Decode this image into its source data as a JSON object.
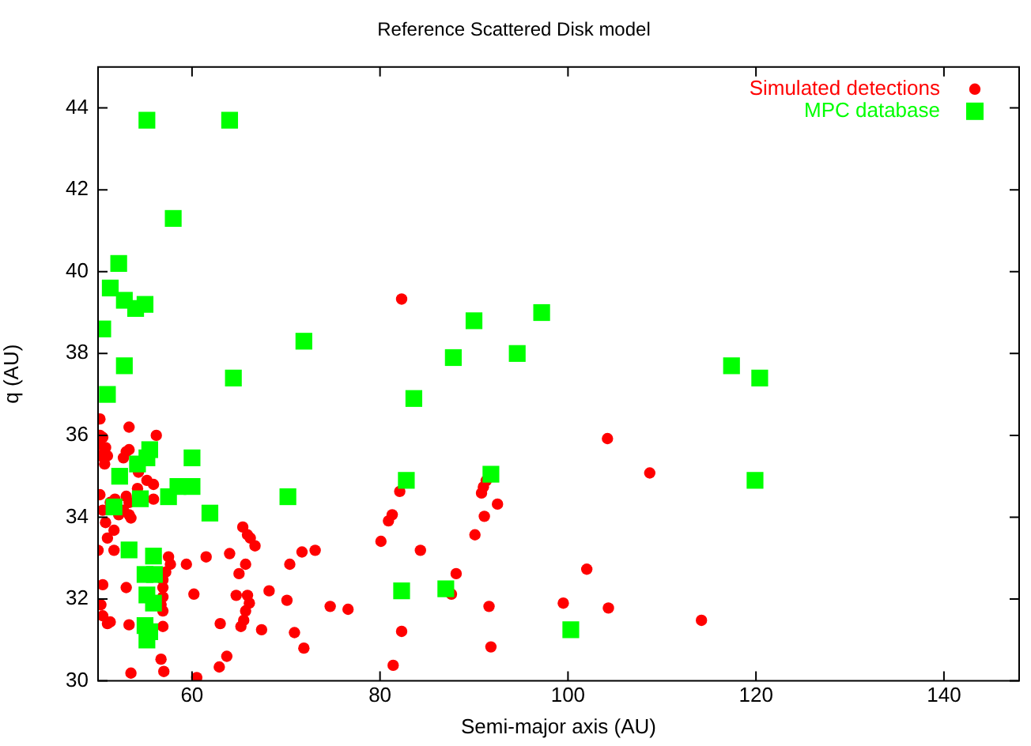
{
  "chart_data": {
    "type": "scatter",
    "title": "Reference Scattered Disk model",
    "xlabel": "Semi-major axis (AU)",
    "ylabel": "q (AU)",
    "xlim": [
      50,
      148
    ],
    "ylim": [
      30,
      45
    ],
    "xticks": [
      60,
      80,
      100,
      120,
      140
    ],
    "yticks": [
      30,
      32,
      34,
      36,
      38,
      40,
      42,
      44
    ],
    "grid": false,
    "legend": "top right",
    "series": [
      {
        "name": "Simulated detections",
        "color": "#ff0000",
        "marker": "circle",
        "x": [
          50.2,
          53.3,
          50.2,
          50.5,
          56.2,
          50.2,
          50.8,
          50.3,
          51,
          50.7,
          53,
          53.3,
          52.7,
          54.3,
          55.2,
          55.9,
          50.2,
          51.3,
          51.8,
          53,
          53.3,
          52.7,
          53.3,
          53.5,
          52.2,
          50.5,
          50.8,
          51,
          51.7,
          55.9,
          54.2,
          50,
          51.7,
          57.5,
          57.7,
          57.2,
          56.9,
          56.9,
          56.9,
          56.7,
          56.9,
          56.9,
          59.4,
          61.5,
          64,
          50.5,
          53,
          60.2,
          50.3,
          50.5,
          51,
          51.3,
          53.3,
          63,
          64.7,
          65.9,
          66.1,
          65.7,
          65.5,
          65.2,
          65.7,
          65,
          65.4,
          65.9,
          66.2,
          66.7,
          67.4,
          63.7,
          62.9,
          56.7,
          57,
          53.5,
          60.5,
          82.1,
          81.3,
          80.9,
          80.1,
          84.3,
          71.7,
          73.1,
          70.4,
          68.2,
          70.1,
          74.7,
          76.6,
          70.9,
          71.9,
          82.3,
          81.4,
          87.6,
          88.1,
          91.6,
          91.8,
          90.1,
          91.1,
          92.5,
          90.8,
          91,
          91.3,
          82.3,
          104.2,
          108.7,
          102,
          99.5,
          104.3,
          114.2
        ],
        "values": [
          36.4,
          36.2,
          36,
          35.95,
          36,
          35.77,
          35.7,
          35.5,
          35.5,
          35.3,
          35.6,
          35.65,
          35.45,
          35.1,
          34.9,
          34.8,
          34.55,
          34.36,
          34.44,
          34.51,
          34.36,
          34.17,
          34.06,
          33.98,
          34.06,
          34.17,
          33.87,
          33.49,
          33.68,
          34.44,
          34.7,
          33.19,
          33.19,
          33.03,
          32.85,
          32.66,
          32.47,
          32.28,
          32.05,
          31.86,
          31.71,
          31.33,
          32.85,
          33.03,
          33.11,
          32.35,
          32.28,
          32.12,
          31.86,
          31.59,
          31.4,
          31.44,
          31.37,
          31.4,
          32.09,
          32.09,
          31.9,
          31.71,
          31.48,
          31.33,
          32.85,
          32.62,
          33.76,
          33.57,
          33.49,
          33.3,
          31.25,
          30.6,
          30.34,
          30.53,
          30.23,
          30.19,
          30.08,
          34.63,
          34.06,
          33.91,
          33.41,
          33.19,
          33.15,
          33.19,
          32.85,
          32.2,
          31.97,
          31.82,
          31.75,
          31.18,
          30.8,
          31.21,
          30.38,
          32.12,
          32.62,
          31.82,
          30.83,
          33.57,
          34.02,
          34.32,
          34.59,
          34.74,
          34.89,
          39.33,
          35.92,
          35.08,
          32.73,
          31.9,
          31.78,
          31.48
        ]
      },
      {
        "name": "MPC database",
        "color": "#00ff00",
        "marker": "square",
        "x": [
          55.2,
          64,
          58,
          52.2,
          51.3,
          52.8,
          54,
          55,
          50.5,
          52.8,
          51,
          64.4,
          71.9,
          83.6,
          87.8,
          90,
          94.6,
          97.2,
          117.4,
          120.4,
          119.9,
          100.3,
          82.8,
          91.8,
          70.2,
          82.3,
          87,
          55.5,
          55.2,
          54.2,
          60,
          52.3,
          54.5,
          57.5,
          58.5,
          60,
          51.7,
          61.9,
          53.3,
          55.9,
          55,
          56,
          55.2,
          55.9,
          55,
          55.5,
          55.2
        ],
        "values": [
          43.7,
          43.7,
          41.3,
          40.2,
          39.6,
          39.3,
          39.1,
          39.2,
          38.6,
          37.7,
          37,
          37.4,
          38.3,
          36.9,
          37.9,
          38.8,
          38,
          39,
          37.7,
          37.4,
          34.9,
          31.25,
          34.9,
          35.05,
          34.5,
          32.2,
          32.25,
          35.65,
          35.45,
          35.3,
          35.45,
          35,
          34.45,
          34.5,
          34.75,
          34.75,
          34.25,
          34.1,
          33.2,
          33.05,
          32.6,
          32.6,
          32.1,
          31.9,
          31.35,
          31.2,
          31
        ]
      }
    ]
  }
}
